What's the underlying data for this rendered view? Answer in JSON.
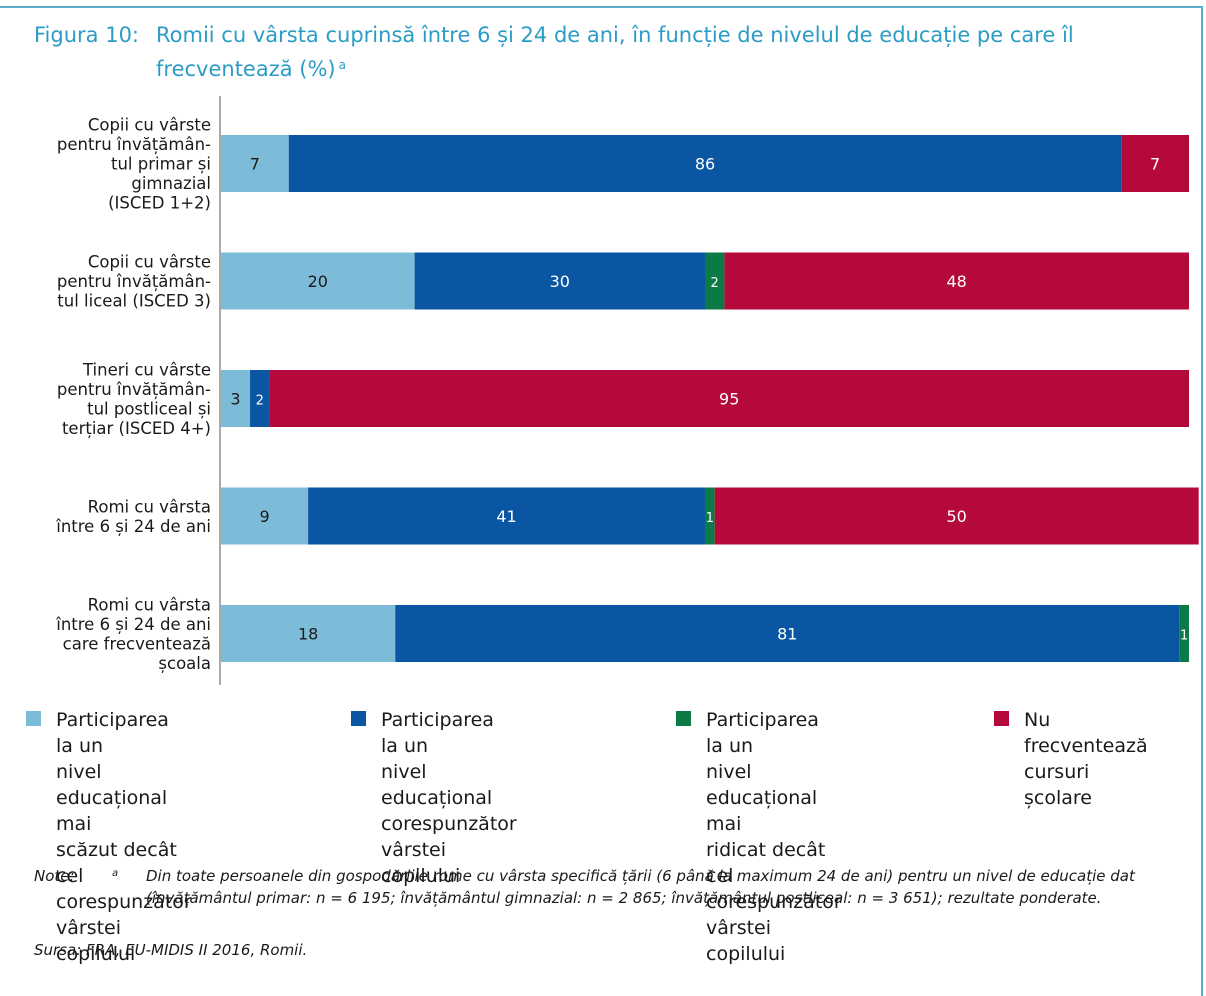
{
  "title": {
    "figure_label": "Figura 10:",
    "text": "Romii cu vârsta cuprinsă între 6 și 24 de ani, în funcție de nivelul de educație pe care îl frecventează (%)",
    "footnote_mark": "a"
  },
  "chart_data": {
    "type": "bar",
    "orientation": "horizontal",
    "stacked": true,
    "categories": [
      [
        "Copii cu vârste",
        "pentru învățămân-",
        "tul primar și",
        "gimnazial",
        "(ISCED 1+2)"
      ],
      [
        "Copii cu vârste",
        "pentru învățămân-",
        "tul liceal (ISCED 3)"
      ],
      [
        "Tineri cu vârste",
        "pentru învățămân-",
        "tul postliceal și",
        "terțiar (ISCED 4+)"
      ],
      [
        "Romi cu vârsta",
        "între 6 și 24 de ani"
      ],
      [
        "Romi cu vârsta",
        "între 6 și 24 de ani",
        "care frecventează",
        "școala"
      ]
    ],
    "series": [
      {
        "name": "Participarea la un nivel educațional mai scăzut decât cel corespunzător vârstei copilului",
        "color": "#7dbcd9",
        "values": [
          7,
          20,
          3,
          9,
          18
        ]
      },
      {
        "name": "Participarea la un nivel educațional corespunzător vârstei copilului",
        "color": "#0a56a3",
        "values": [
          86,
          30,
          2,
          41,
          81
        ]
      },
      {
        "name": "Participarea la un nivel educațional mai ridicat decât cel corespunzător vârstei copilului",
        "color": "#0b7a44",
        "values": [
          0,
          2,
          0,
          1,
          1
        ]
      },
      {
        "name": "Nu frecventează cursuri școlare",
        "color": "#b4093a",
        "values": [
          7,
          48,
          95,
          50,
          0
        ]
      }
    ],
    "xlim": [
      0,
      100
    ],
    "grid": false,
    "legend_position": "bottom"
  },
  "legend": [
    {
      "lines": [
        "Participarea la un",
        "nivel educațional mai",
        "scăzut decât cel",
        "corespunzător vârstei",
        "copilului"
      ]
    },
    {
      "lines": [
        "Participarea la un",
        "nivel educațional",
        "corespunzător vârstei",
        "copilului"
      ]
    },
    {
      "lines": [
        "Participarea la un",
        "nivel educațional mai",
        "ridicat decât cel",
        "corespunzător",
        "vârstei copilului"
      ]
    },
    {
      "lines": [
        "Nu frecventează",
        "cursuri școlare"
      ]
    }
  ],
  "notes": {
    "label": "Note:",
    "mark": "a",
    "text": "Din toate persoanele din gospodăriile rome cu vârsta specifică țării (6 până la maximum 24 de ani) pentru un nivel de educație dat (învățământul primar: n = 6 195; învățământul gimnazial: n = 2 865; învățământul postliceal: n = 3 651); rezultate ponderate."
  },
  "source": "Sursa: FRA, EU-MIDIS II 2016, Romii."
}
